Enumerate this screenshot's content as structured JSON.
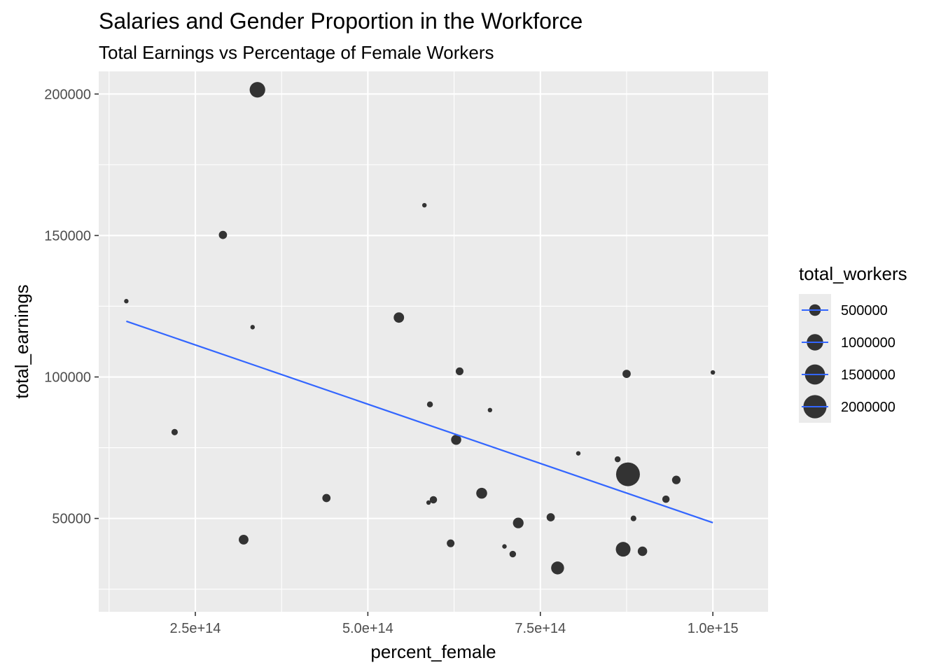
{
  "chart_data": {
    "type": "scatter",
    "title": "Salaries and Gender Proportion in the Workforce",
    "subtitle": "Total Earnings vs Percentage of Female Workers",
    "xlabel": "percent_female",
    "ylabel": "total_earnings",
    "xlim": [
      110000000000000,
      1080000000000000
    ],
    "ylim": [
      17000000,
      208000
    ],
    "xticks": [
      250000000000000,
      500000000000000,
      750000000000000,
      1000000000000000
    ],
    "xtick_labels": [
      "2.5e+14",
      "5.0e+14",
      "7.5e+14",
      "1.0e+15"
    ],
    "yticks": [
      50000,
      100000,
      150000,
      200000
    ],
    "ytick_labels": [
      "50000",
      "100000",
      "150000",
      "200000"
    ],
    "grid": true,
    "panel_background": "#ebebeb",
    "grid_color": "#ffffff",
    "point_color": "#333333",
    "trend_color": "#3366ff",
    "legend": {
      "title": "total_workers",
      "placement": "right",
      "entries": [
        {
          "label": "500000",
          "value": 500000
        },
        {
          "label": "1000000",
          "value": 1000000
        },
        {
          "label": "1500000",
          "value": 1500000
        },
        {
          "label": "2000000",
          "value": 2000000
        }
      ]
    },
    "trend_line": {
      "x": [
        150000000000000,
        1000000000000000
      ],
      "y": [
        119700,
        48500
      ]
    },
    "points": [
      {
        "x": 150000000000000,
        "y": 126800,
        "size": 20000
      },
      {
        "x": 220000000000000,
        "y": 80500,
        "size": 150000
      },
      {
        "x": 290000000000000,
        "y": 150200,
        "size": 250000
      },
      {
        "x": 320000000000000,
        "y": 42500,
        "size": 350000
      },
      {
        "x": 333000000000000,
        "y": 117600,
        "size": 60000
      },
      {
        "x": 340000000000000,
        "y": 201500,
        "size": 900000
      },
      {
        "x": 440000000000000,
        "y": 57200,
        "size": 250000
      },
      {
        "x": 545000000000000,
        "y": 121000,
        "size": 400000
      },
      {
        "x": 582000000000000,
        "y": 160700,
        "size": 60000
      },
      {
        "x": 588000000000000,
        "y": 55600,
        "size": 40000
      },
      {
        "x": 590000000000000,
        "y": 90300,
        "size": 130000
      },
      {
        "x": 595000000000000,
        "y": 56600,
        "size": 200000
      },
      {
        "x": 620000000000000,
        "y": 41200,
        "size": 220000
      },
      {
        "x": 628000000000000,
        "y": 77800,
        "size": 380000
      },
      {
        "x": 633000000000000,
        "y": 102000,
        "size": 220000
      },
      {
        "x": 665000000000000,
        "y": 58900,
        "size": 440000
      },
      {
        "x": 677000000000000,
        "y": 88300,
        "size": 40000
      },
      {
        "x": 698000000000000,
        "y": 40100,
        "size": 50000
      },
      {
        "x": 710000000000000,
        "y": 37400,
        "size": 160000
      },
      {
        "x": 718000000000000,
        "y": 48400,
        "size": 420000
      },
      {
        "x": 765000000000000,
        "y": 50400,
        "size": 250000
      },
      {
        "x": 775000000000000,
        "y": 32500,
        "size": 620000
      },
      {
        "x": 805000000000000,
        "y": 73000,
        "size": 40000
      },
      {
        "x": 862000000000000,
        "y": 70900,
        "size": 130000
      },
      {
        "x": 870000000000000,
        "y": 39100,
        "size": 800000
      },
      {
        "x": 875000000000000,
        "y": 101100,
        "size": 250000
      },
      {
        "x": 877000000000000,
        "y": 65600,
        "size": 2100000
      },
      {
        "x": 885000000000000,
        "y": 50000,
        "size": 120000
      },
      {
        "x": 898000000000000,
        "y": 38400,
        "size": 330000
      },
      {
        "x": 932000000000000,
        "y": 56800,
        "size": 200000
      },
      {
        "x": 947000000000000,
        "y": 63600,
        "size": 270000
      },
      {
        "x": 1000000000000000,
        "y": 101600,
        "size": 20000
      }
    ]
  }
}
